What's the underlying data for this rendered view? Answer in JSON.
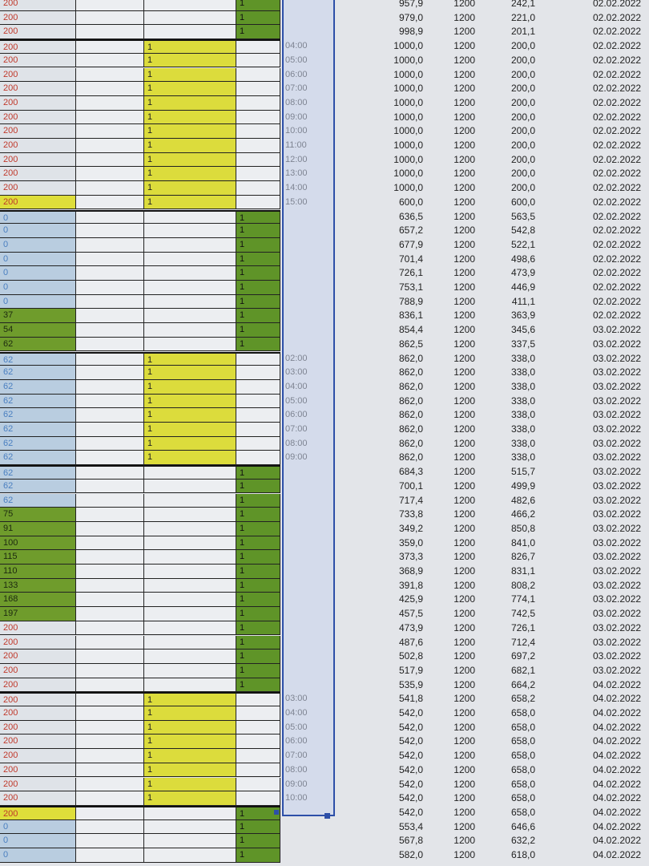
{
  "colors": {
    "green": "#6f9c2c",
    "yellow": "#dede3a",
    "blue_fill": "#b9cde0",
    "red_text": "#c0392b",
    "selection": "#2d4fa8"
  },
  "marker": "1",
  "rows": [
    {
      "a": "200",
      "s": "red",
      "b": "g",
      "t": "",
      "v1": "957,9",
      "v2": "1200",
      "v3": "242,1",
      "d": "02.02.2022"
    },
    {
      "a": "200",
      "s": "red",
      "b": "g",
      "t": "",
      "v1": "979,0",
      "v2": "1200",
      "v3": "221,0",
      "d": "02.02.2022"
    },
    {
      "a": "200",
      "s": "red",
      "b": "g",
      "t": "",
      "v1": "998,9",
      "v2": "1200",
      "v3": "201,1",
      "d": "02.02.2022"
    },
    {
      "a": "200",
      "s": "red",
      "b": "y",
      "t": "04:00",
      "v1": "1000,0",
      "v2": "1200",
      "v3": "200,0",
      "d": "02.02.2022"
    },
    {
      "a": "200",
      "s": "red",
      "b": "y",
      "t": "05:00",
      "v1": "1000,0",
      "v2": "1200",
      "v3": "200,0",
      "d": "02.02.2022"
    },
    {
      "a": "200",
      "s": "red",
      "b": "y",
      "t": "06:00",
      "v1": "1000,0",
      "v2": "1200",
      "v3": "200,0",
      "d": "02.02.2022"
    },
    {
      "a": "200",
      "s": "red",
      "b": "y",
      "t": "07:00",
      "v1": "1000,0",
      "v2": "1200",
      "v3": "200,0",
      "d": "02.02.2022"
    },
    {
      "a": "200",
      "s": "red",
      "b": "y",
      "t": "08:00",
      "v1": "1000,0",
      "v2": "1200",
      "v3": "200,0",
      "d": "02.02.2022"
    },
    {
      "a": "200",
      "s": "red",
      "b": "y",
      "t": "09:00",
      "v1": "1000,0",
      "v2": "1200",
      "v3": "200,0",
      "d": "02.02.2022"
    },
    {
      "a": "200",
      "s": "red",
      "b": "y",
      "t": "10:00",
      "v1": "1000,0",
      "v2": "1200",
      "v3": "200,0",
      "d": "02.02.2022"
    },
    {
      "a": "200",
      "s": "red",
      "b": "y",
      "t": "11:00",
      "v1": "1000,0",
      "v2": "1200",
      "v3": "200,0",
      "d": "02.02.2022"
    },
    {
      "a": "200",
      "s": "red",
      "b": "y",
      "t": "12:00",
      "v1": "1000,0",
      "v2": "1200",
      "v3": "200,0",
      "d": "02.02.2022"
    },
    {
      "a": "200",
      "s": "red",
      "b": "y",
      "t": "13:00",
      "v1": "1000,0",
      "v2": "1200",
      "v3": "200,0",
      "d": "02.02.2022"
    },
    {
      "a": "200",
      "s": "red",
      "b": "y",
      "t": "14:00",
      "v1": "1000,0",
      "v2": "1200",
      "v3": "200,0",
      "d": "02.02.2022"
    },
    {
      "a": "200",
      "s": "yellow",
      "b": "y",
      "t": "15:00",
      "v1": "600,0",
      "v2": "1200",
      "v3": "600,0",
      "d": "02.02.2022"
    },
    {
      "a": "0",
      "s": "blue",
      "b": "g",
      "t": "",
      "v1": "636,5",
      "v2": "1200",
      "v3": "563,5",
      "d": "02.02.2022"
    },
    {
      "a": "0",
      "s": "blue",
      "b": "g",
      "t": "",
      "v1": "657,2",
      "v2": "1200",
      "v3": "542,8",
      "d": "02.02.2022"
    },
    {
      "a": "0",
      "s": "blue",
      "b": "g",
      "t": "",
      "v1": "677,9",
      "v2": "1200",
      "v3": "522,1",
      "d": "02.02.2022"
    },
    {
      "a": "0",
      "s": "blue",
      "b": "g",
      "t": "",
      "v1": "701,4",
      "v2": "1200",
      "v3": "498,6",
      "d": "02.02.2022"
    },
    {
      "a": "0",
      "s": "blue",
      "b": "g",
      "t": "",
      "v1": "726,1",
      "v2": "1200",
      "v3": "473,9",
      "d": "02.02.2022"
    },
    {
      "a": "0",
      "s": "blue",
      "b": "g",
      "t": "",
      "v1": "753,1",
      "v2": "1200",
      "v3": "446,9",
      "d": "02.02.2022"
    },
    {
      "a": "0",
      "s": "blue",
      "b": "g",
      "t": "",
      "v1": "788,9",
      "v2": "1200",
      "v3": "411,1",
      "d": "02.02.2022"
    },
    {
      "a": "37",
      "s": "green",
      "b": "g",
      "t": "",
      "v1": "836,1",
      "v2": "1200",
      "v3": "363,9",
      "d": "02.02.2022"
    },
    {
      "a": "54",
      "s": "green",
      "b": "g",
      "t": "",
      "v1": "854,4",
      "v2": "1200",
      "v3": "345,6",
      "d": "03.02.2022"
    },
    {
      "a": "62",
      "s": "green",
      "b": "g",
      "t": "",
      "v1": "862,5",
      "v2": "1200",
      "v3": "337,5",
      "d": "03.02.2022"
    },
    {
      "a": "62",
      "s": "blue",
      "b": "y",
      "t": "02:00",
      "v1": "862,0",
      "v2": "1200",
      "v3": "338,0",
      "d": "03.02.2022"
    },
    {
      "a": "62",
      "s": "blue",
      "b": "y",
      "t": "03:00",
      "v1": "862,0",
      "v2": "1200",
      "v3": "338,0",
      "d": "03.02.2022"
    },
    {
      "a": "62",
      "s": "blue",
      "b": "y",
      "t": "04:00",
      "v1": "862,0",
      "v2": "1200",
      "v3": "338,0",
      "d": "03.02.2022"
    },
    {
      "a": "62",
      "s": "blue",
      "b": "y",
      "t": "05:00",
      "v1": "862,0",
      "v2": "1200",
      "v3": "338,0",
      "d": "03.02.2022"
    },
    {
      "a": "62",
      "s": "blue",
      "b": "y",
      "t": "06:00",
      "v1": "862,0",
      "v2": "1200",
      "v3": "338,0",
      "d": "03.02.2022"
    },
    {
      "a": "62",
      "s": "blue",
      "b": "y",
      "t": "07:00",
      "v1": "862,0",
      "v2": "1200",
      "v3": "338,0",
      "d": "03.02.2022"
    },
    {
      "a": "62",
      "s": "blue",
      "b": "y",
      "t": "08:00",
      "v1": "862,0",
      "v2": "1200",
      "v3": "338,0",
      "d": "03.02.2022"
    },
    {
      "a": "62",
      "s": "blue",
      "b": "y",
      "t": "09:00",
      "v1": "862,0",
      "v2": "1200",
      "v3": "338,0",
      "d": "03.02.2022"
    },
    {
      "a": "62",
      "s": "blue",
      "b": "g",
      "t": "",
      "v1": "684,3",
      "v2": "1200",
      "v3": "515,7",
      "d": "03.02.2022"
    },
    {
      "a": "62",
      "s": "blue",
      "b": "g",
      "t": "",
      "v1": "700,1",
      "v2": "1200",
      "v3": "499,9",
      "d": "03.02.2022"
    },
    {
      "a": "62",
      "s": "blue",
      "b": "g",
      "t": "",
      "v1": "717,4",
      "v2": "1200",
      "v3": "482,6",
      "d": "03.02.2022"
    },
    {
      "a": "75",
      "s": "green",
      "b": "g",
      "t": "",
      "v1": "733,8",
      "v2": "1200",
      "v3": "466,2",
      "d": "03.02.2022"
    },
    {
      "a": "91",
      "s": "green",
      "b": "g",
      "t": "",
      "v1": "349,2",
      "v2": "1200",
      "v3": "850,8",
      "d": "03.02.2022"
    },
    {
      "a": "100",
      "s": "green",
      "b": "g",
      "t": "",
      "v1": "359,0",
      "v2": "1200",
      "v3": "841,0",
      "d": "03.02.2022"
    },
    {
      "a": "115",
      "s": "green",
      "b": "g",
      "t": "",
      "v1": "373,3",
      "v2": "1200",
      "v3": "826,7",
      "d": "03.02.2022"
    },
    {
      "a": "110",
      "s": "green",
      "b": "g",
      "t": "",
      "v1": "368,9",
      "v2": "1200",
      "v3": "831,1",
      "d": "03.02.2022"
    },
    {
      "a": "133",
      "s": "green",
      "b": "g",
      "t": "",
      "v1": "391,8",
      "v2": "1200",
      "v3": "808,2",
      "d": "03.02.2022"
    },
    {
      "a": "168",
      "s": "green",
      "b": "g",
      "t": "",
      "v1": "425,9",
      "v2": "1200",
      "v3": "774,1",
      "d": "03.02.2022"
    },
    {
      "a": "197",
      "s": "green",
      "b": "g",
      "t": "",
      "v1": "457,5",
      "v2": "1200",
      "v3": "742,5",
      "d": "03.02.2022"
    },
    {
      "a": "200",
      "s": "red",
      "b": "g",
      "t": "",
      "v1": "473,9",
      "v2": "1200",
      "v3": "726,1",
      "d": "03.02.2022"
    },
    {
      "a": "200",
      "s": "red",
      "b": "g",
      "t": "",
      "v1": "487,6",
      "v2": "1200",
      "v3": "712,4",
      "d": "03.02.2022"
    },
    {
      "a": "200",
      "s": "red",
      "b": "g",
      "t": "",
      "v1": "502,8",
      "v2": "1200",
      "v3": "697,2",
      "d": "03.02.2022"
    },
    {
      "a": "200",
      "s": "red",
      "b": "g",
      "t": "",
      "v1": "517,9",
      "v2": "1200",
      "v3": "682,1",
      "d": "03.02.2022"
    },
    {
      "a": "200",
      "s": "red",
      "b": "g",
      "t": "",
      "v1": "535,9",
      "v2": "1200",
      "v3": "664,2",
      "d": "04.02.2022"
    },
    {
      "a": "200",
      "s": "red",
      "b": "y",
      "t": "03:00",
      "v1": "541,8",
      "v2": "1200",
      "v3": "658,2",
      "d": "04.02.2022"
    },
    {
      "a": "200",
      "s": "red",
      "b": "y",
      "t": "04:00",
      "v1": "542,0",
      "v2": "1200",
      "v3": "658,0",
      "d": "04.02.2022"
    },
    {
      "a": "200",
      "s": "red",
      "b": "y",
      "t": "05:00",
      "v1": "542,0",
      "v2": "1200",
      "v3": "658,0",
      "d": "04.02.2022"
    },
    {
      "a": "200",
      "s": "red",
      "b": "y",
      "t": "06:00",
      "v1": "542,0",
      "v2": "1200",
      "v3": "658,0",
      "d": "04.02.2022"
    },
    {
      "a": "200",
      "s": "red",
      "b": "y",
      "t": "07:00",
      "v1": "542,0",
      "v2": "1200",
      "v3": "658,0",
      "d": "04.02.2022"
    },
    {
      "a": "200",
      "s": "red",
      "b": "y",
      "t": "08:00",
      "v1": "542,0",
      "v2": "1200",
      "v3": "658,0",
      "d": "04.02.2022"
    },
    {
      "a": "200",
      "s": "red",
      "b": "y",
      "t": "09:00",
      "v1": "542,0",
      "v2": "1200",
      "v3": "658,0",
      "d": "04.02.2022"
    },
    {
      "a": "200",
      "s": "red",
      "b": "y",
      "t": "10:00",
      "v1": "542,0",
      "v2": "1200",
      "v3": "658,0",
      "d": "04.02.2022"
    },
    {
      "a": "200",
      "s": "yellow",
      "b": "g",
      "t": "",
      "v1": "542,0",
      "v2": "1200",
      "v3": "658,0",
      "d": "04.02.2022"
    },
    {
      "a": "0",
      "s": "blue",
      "b": "g",
      "t": "",
      "v1": "553,4",
      "v2": "1200",
      "v3": "646,6",
      "d": "04.02.2022"
    },
    {
      "a": "0",
      "s": "blue",
      "b": "g",
      "t": "",
      "v1": "567,8",
      "v2": "1200",
      "v3": "632,2",
      "d": "04.02.2022"
    },
    {
      "a": "0",
      "s": "blue",
      "b": "g",
      "t": "",
      "v1": "582,0",
      "v2": "1200",
      "v3": "618,0",
      "d": "04.02.2022"
    }
  ]
}
